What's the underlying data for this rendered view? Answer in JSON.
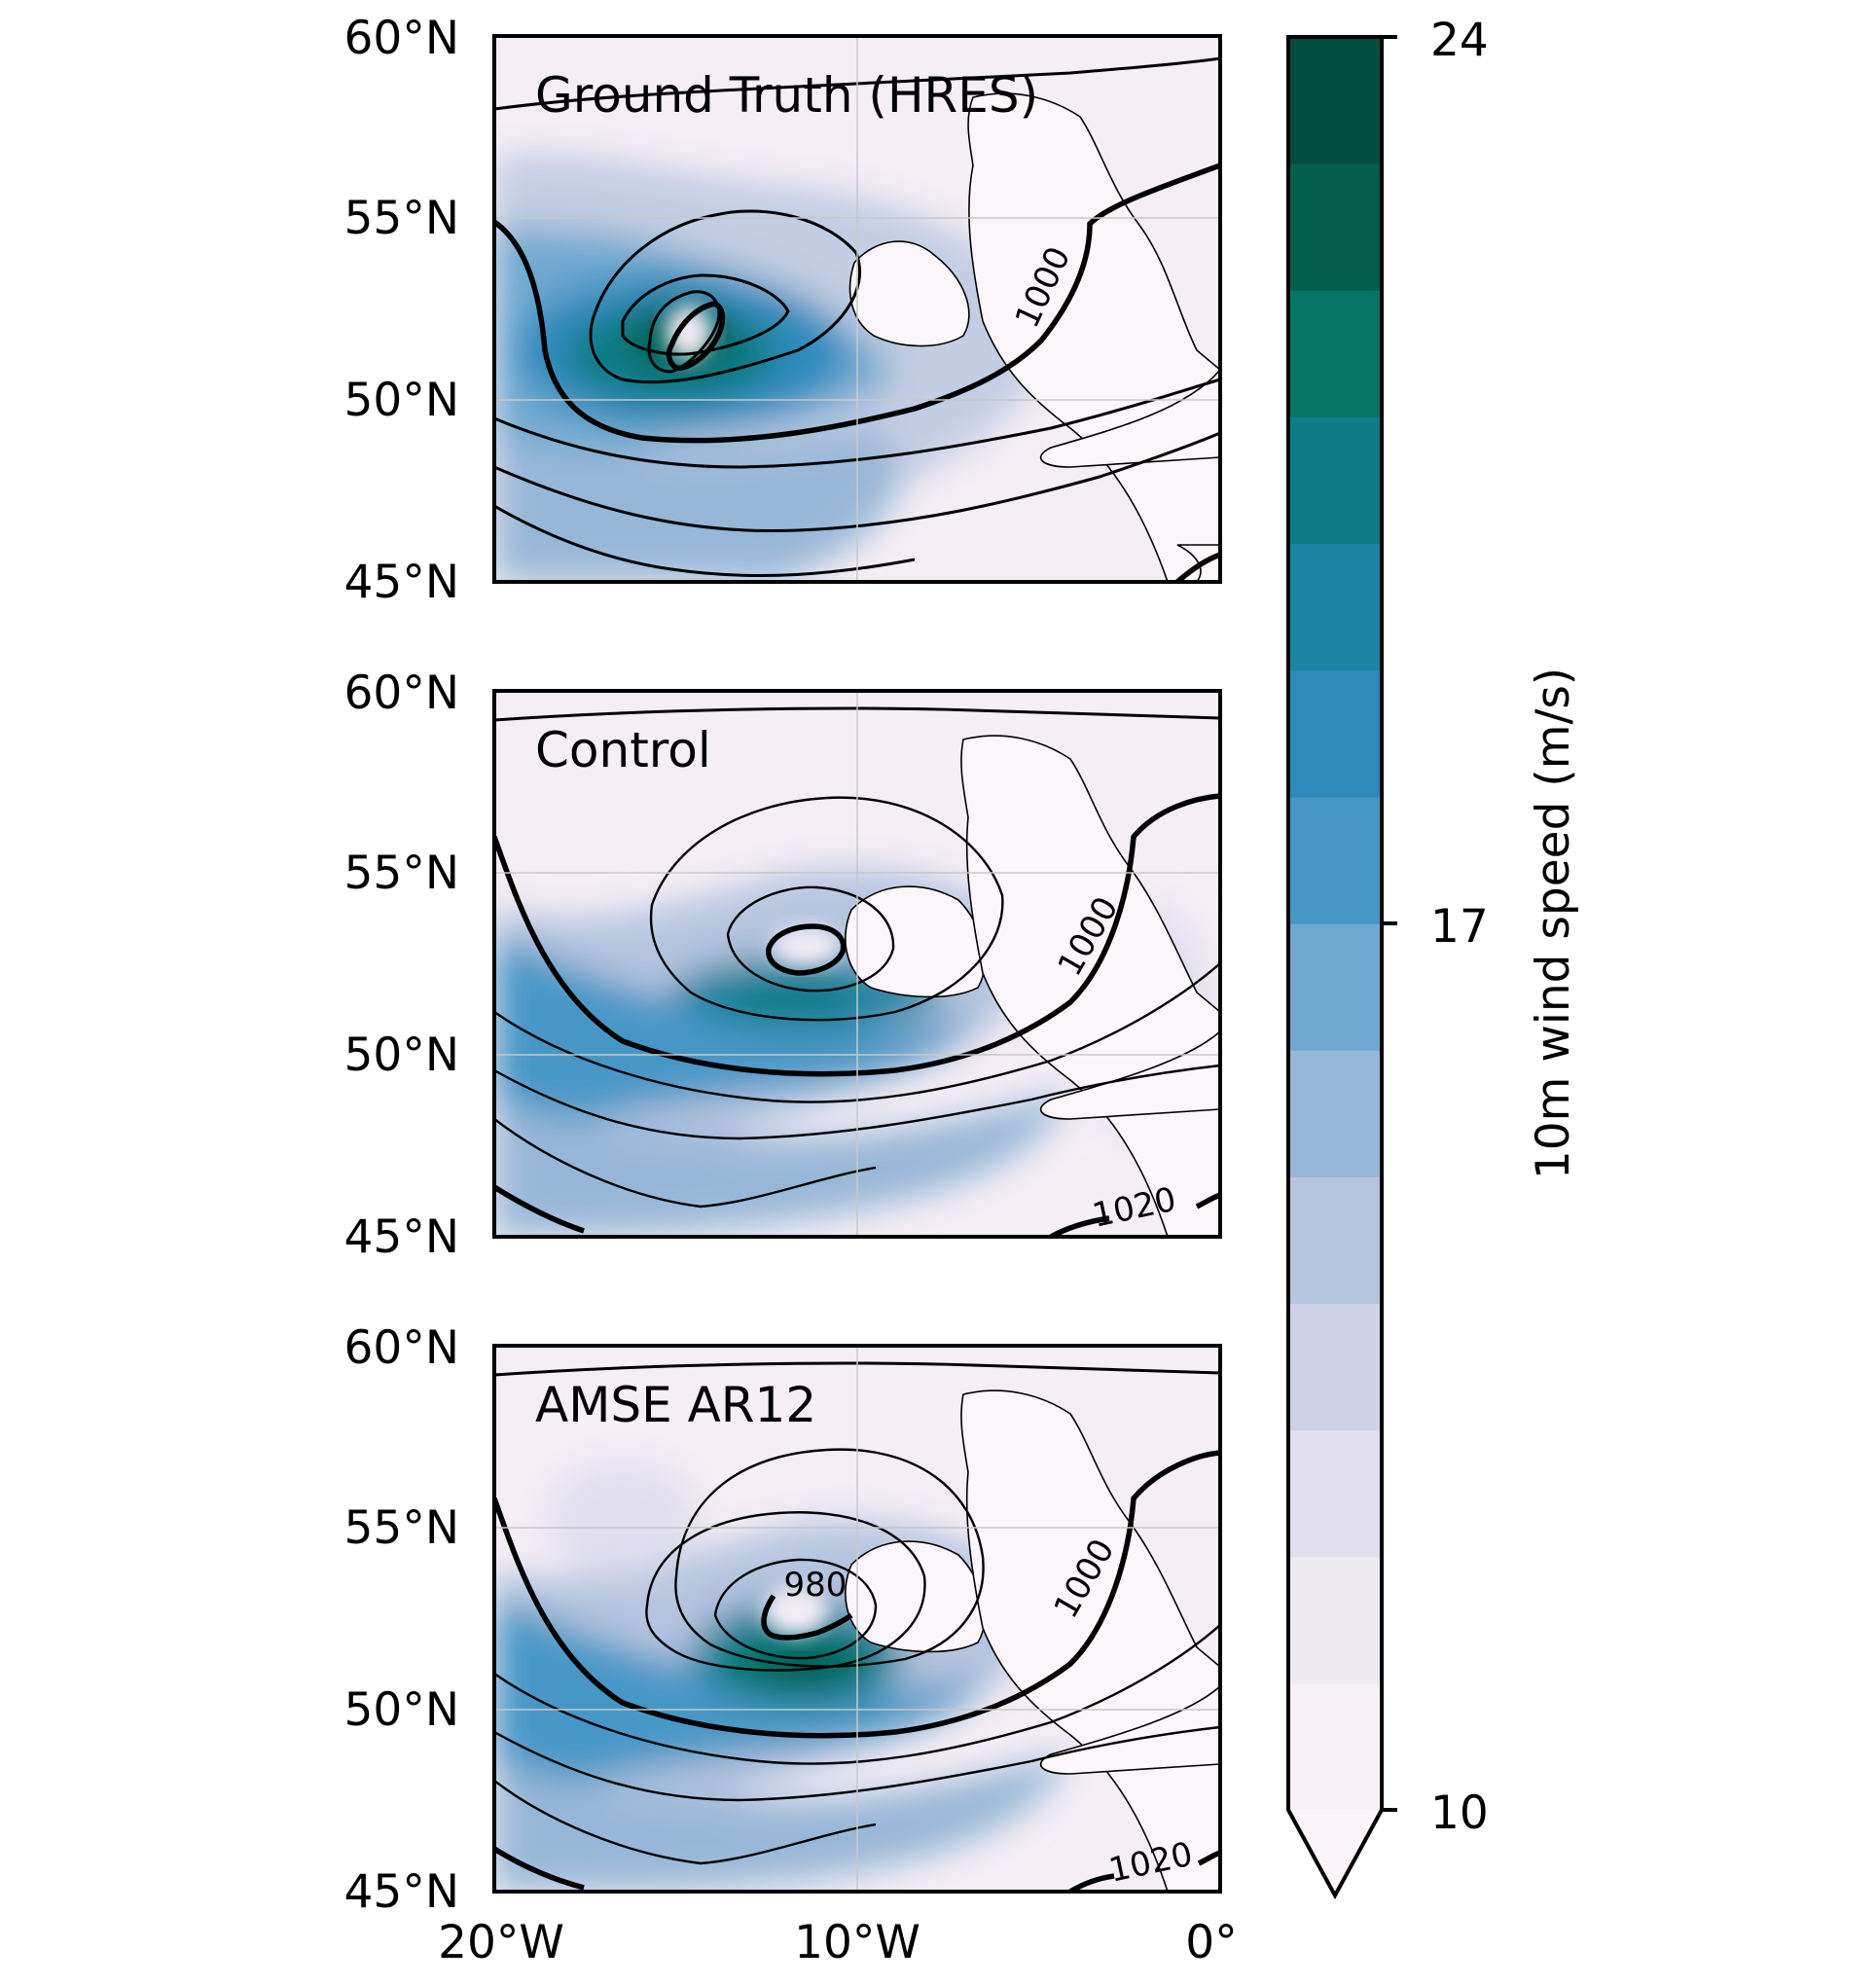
{
  "colorbar": {
    "label": "10m wind speed (m/s)",
    "min": 10,
    "max": 24,
    "ticks": [
      "24",
      "17",
      "10"
    ],
    "extend": "min",
    "colors": [
      "#f8f0f7",
      "#eeeaf2",
      "#e1dfee",
      "#cdd2e6",
      "#b6c5df",
      "#97b7d8",
      "#6ea8d0",
      "#4797c6",
      "#3089bd",
      "#1b84a3",
      "#0e7c86",
      "#067567",
      "#045e4c",
      "#034e3f"
    ]
  },
  "axes": {
    "lat_labels": [
      "60°N",
      "55°N",
      "50°N",
      "45°N"
    ],
    "lon_labels": [
      "20°W",
      "10°W",
      "0°"
    ]
  },
  "panels": [
    {
      "title": "Ground Truth (HRES)",
      "contour_labels": [
        "1000"
      ]
    },
    {
      "title": "Control",
      "contour_labels": [
        "1000",
        "1020"
      ]
    },
    {
      "title": "AMSE AR12",
      "contour_labels": [
        "980",
        "1000",
        "1020"
      ]
    }
  ],
  "chart_data": {
    "type": "heatmap",
    "variable": "10m wind speed (m/s)",
    "overlay": "mean sea level pressure contours (hPa)",
    "lat_range": [
      45,
      60
    ],
    "lon_range": [
      -20,
      0
    ],
    "panels": [
      {
        "title": "Ground Truth (HRES)",
        "low_center": {
          "lat": 51.8,
          "lon": -14.5
        },
        "max_wind": 24
      },
      {
        "title": "Control",
        "low_center": {
          "lat": 52.5,
          "lon": -11.8
        },
        "max_wind": 22
      },
      {
        "title": "AMSE AR12",
        "low_center": {
          "lat": 52.3,
          "lon": -11.8
        },
        "max_wind": 24
      }
    ]
  }
}
